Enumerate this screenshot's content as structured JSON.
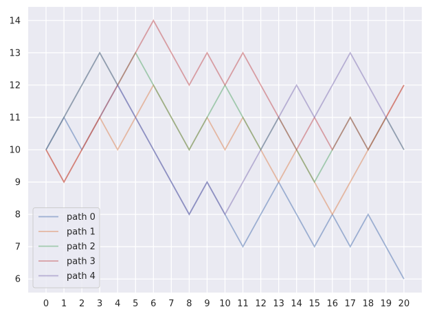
{
  "chart_data": {
    "type": "line",
    "title": "",
    "xlabel": "",
    "ylabel": "",
    "x": [
      0,
      1,
      2,
      3,
      4,
      5,
      6,
      7,
      8,
      9,
      10,
      11,
      12,
      13,
      14,
      15,
      16,
      17,
      18,
      19,
      20
    ],
    "xlim": [
      -1,
      21
    ],
    "ylim": [
      5.58,
      14.42
    ],
    "yticks": [
      6,
      7,
      8,
      9,
      10,
      11,
      12,
      13,
      14
    ],
    "grid": true,
    "background": "#eaeaf2",
    "grid_color": "#ffffff",
    "legend_position": "lower-left",
    "series": [
      {
        "name": "path 0",
        "color": "#4c72b0",
        "values": [
          10,
          11,
          10,
          11,
          12,
          11,
          10,
          9,
          8,
          9,
          8,
          7,
          8,
          9,
          8,
          7,
          8,
          7,
          8,
          7,
          6
        ]
      },
      {
        "name": "path 1",
        "color": "#dd8452",
        "values": [
          10,
          9,
          10,
          11,
          10,
          11,
          12,
          11,
          10,
          11,
          10,
          11,
          10,
          9,
          10,
          9,
          8,
          9,
          10,
          11,
          12
        ]
      },
      {
        "name": "path 2",
        "color": "#55a868",
        "values": [
          10,
          11,
          12,
          13,
          12,
          13,
          12,
          11,
          10,
          11,
          12,
          11,
          10,
          11,
          10,
          9,
          10,
          11,
          10,
          11,
          10
        ]
      },
      {
        "name": "path 3",
        "color": "#c44e52",
        "values": [
          10,
          9,
          10,
          11,
          12,
          13,
          14,
          13,
          12,
          13,
          12,
          13,
          12,
          11,
          10,
          11,
          10,
          11,
          10,
          11,
          12
        ]
      },
      {
        "name": "path 4",
        "color": "#8172b3",
        "values": [
          10,
          11,
          12,
          13,
          12,
          11,
          10,
          9,
          8,
          9,
          8,
          9,
          10,
          11,
          12,
          11,
          12,
          13,
          12,
          11,
          10
        ]
      }
    ]
  }
}
